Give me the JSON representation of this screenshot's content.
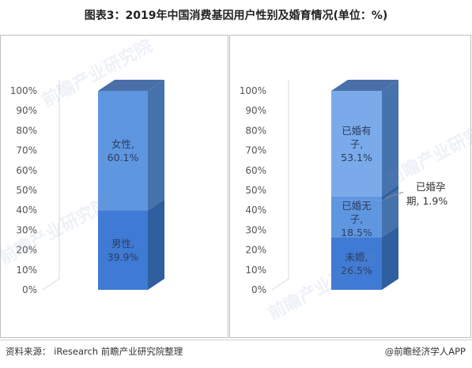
{
  "title": "图表3：2019年中国消费基因用户性别及婚育情况(单位：%)",
  "source": "资料来源： iResearch 前瞻产业研究院整理",
  "brand": "@前瞻经济学人APP",
  "watermark": "前瞻产业研究院",
  "colors": {
    "bar_dark_front": "#3f7ad4",
    "bar_light_front": "#5e96e0",
    "bar_lighter_front": "#7aaaea",
    "bar_side": "#2f5f9e",
    "bar_side_light": "#4672ae",
    "bar_top": "#4a6fa8",
    "segment_text": "#2b3e5e"
  },
  "chart_data": [
    {
      "type": "bar",
      "stacked": true,
      "categories": [
        ""
      ],
      "ylim": [
        0,
        100
      ],
      "ytick_labels": [
        "0%",
        "10%",
        "20%",
        "30%",
        "40%",
        "50%",
        "60%",
        "70%",
        "80%",
        "90%",
        "100%"
      ],
      "series": [
        {
          "name": "男性",
          "values": [
            39.9
          ],
          "label": "男性,",
          "value_label": "39.9%"
        },
        {
          "name": "女性",
          "values": [
            60.1
          ],
          "label": "女性,",
          "value_label": "60.1%"
        }
      ]
    },
    {
      "type": "bar",
      "stacked": true,
      "categories": [
        ""
      ],
      "ylim": [
        0,
        100
      ],
      "ytick_labels": [
        "0%",
        "10%",
        "20%",
        "30%",
        "40%",
        "50%",
        "60%",
        "70%",
        "80%",
        "90%",
        "100%"
      ],
      "series": [
        {
          "name": "未婚",
          "values": [
            26.5
          ],
          "label": "未婚,",
          "value_label": "26.5%"
        },
        {
          "name": "已婚无子",
          "values": [
            18.5
          ],
          "label": "已婚无子,",
          "value_label": "18.5%"
        },
        {
          "name": "已婚孕期",
          "values": [
            1.9
          ],
          "label": "已婚孕期,",
          "value_label": "1.9%"
        },
        {
          "name": "已婚有子",
          "values": [
            53.1
          ],
          "label": "已婚有子,",
          "value_label": "53.1%"
        }
      ]
    }
  ]
}
